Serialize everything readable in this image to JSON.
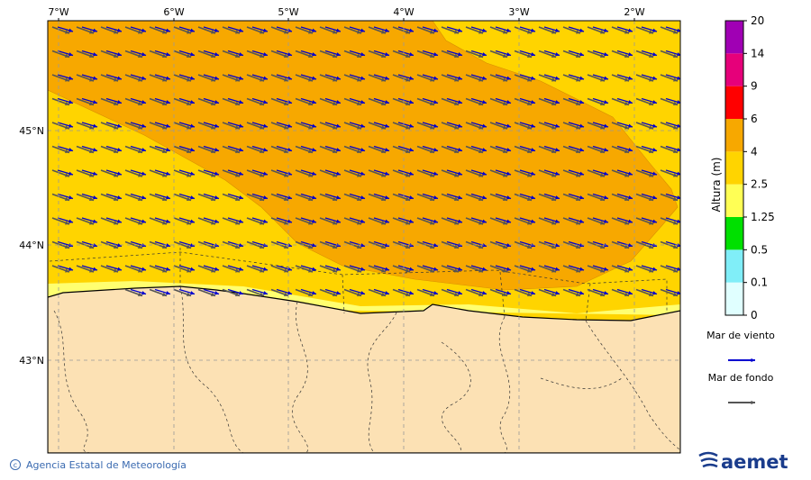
{
  "map": {
    "lon_labels": [
      "7°W",
      "6°W",
      "5°W",
      "4°W",
      "3°W",
      "2°W"
    ],
    "lat_labels": [
      "45°N",
      "44°N",
      "43°N"
    ]
  },
  "colorbar": {
    "title": "Altura (m)",
    "levels": [
      0,
      0.1,
      0.5,
      1.25,
      2.5,
      4,
      6,
      9,
      14,
      20
    ],
    "colors": [
      "#e0ffff",
      "#80eef8",
      "#00e000",
      "#ffff55",
      "#ffd400",
      "#f7a800",
      "#ff0000",
      "#e6007a",
      "#a000b4"
    ]
  },
  "legend": [
    {
      "label": "Mar de viento",
      "color": "#0000d0"
    },
    {
      "label": "Mar de fondo",
      "color": "#555555"
    }
  ],
  "footer": {
    "credit": "Agencia Estatal de Meteorología",
    "logo": "aemet"
  }
}
